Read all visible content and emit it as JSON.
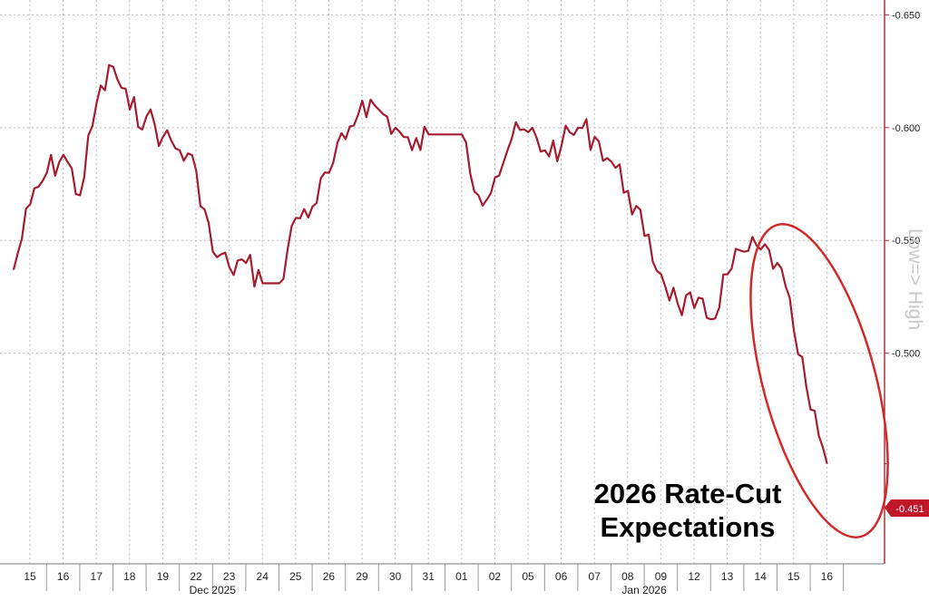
{
  "chart_data": {
    "type": "line",
    "title": "",
    "annotation_lines": [
      "2026 Rate-Cut",
      "Expectations"
    ],
    "ylabel": "Low=> High",
    "yaxis_position": "right",
    "y_inverted": true,
    "ylim": [
      -0.655,
      -0.405
    ],
    "yticks": [
      -0.65,
      -0.6,
      -0.55,
      -0.5
    ],
    "ytick_labels": [
      "-0.650",
      "-0.600",
      "-0.550",
      "-0.500"
    ],
    "last_value": -0.451,
    "last_value_label": "-0.451",
    "grid": true,
    "x_ticks": [
      "15",
      "16",
      "17",
      "18",
      "19",
      "22",
      "23",
      "24",
      "25",
      "26",
      "29",
      "30",
      "31",
      "01",
      "02",
      "05",
      "06",
      "07",
      "08",
      "09",
      "12",
      "13",
      "14",
      "15",
      "16"
    ],
    "month_labels": [
      {
        "label": "Dec 2025",
        "after_tick": "22"
      },
      {
        "label": "Jan 2026",
        "after_tick": "08"
      }
    ],
    "colors": {
      "line": "#a51c30",
      "ellipse": "#d12a2a",
      "axis": "#b0303a",
      "ylabel": "#c8c8c8",
      "badge": "#c0182a"
    },
    "series": [
      {
        "values": [
          {
            "x": "15",
            "y": -0.537
          },
          {
            "x": "15.5",
            "y": -0.566
          },
          {
            "x": "16",
            "y": -0.58
          },
          {
            "x": "16.5",
            "y": -0.588
          },
          {
            "x": "17",
            "y": -0.57
          },
          {
            "x": "17.5",
            "y": -0.611
          },
          {
            "x": "18",
            "y": -0.627
          },
          {
            "x": "18.5",
            "y": -0.608
          },
          {
            "x": "19",
            "y": -0.605
          },
          {
            "x": "19.5",
            "y": -0.596
          },
          {
            "x": "22",
            "y": -0.59
          },
          {
            "x": "22.5",
            "y": -0.581
          },
          {
            "x": "23",
            "y": -0.545
          },
          {
            "x": "23.5",
            "y": -0.538
          },
          {
            "x": "24",
            "y": -0.54
          },
          {
            "x": "24.5",
            "y": -0.531
          },
          {
            "x": "25",
            "y": -0.531
          },
          {
            "x": "25.5",
            "y": -0.56
          },
          {
            "x": "26",
            "y": -0.565
          },
          {
            "x": "26.5",
            "y": -0.58
          },
          {
            "x": "29",
            "y": -0.595
          },
          {
            "x": "29.5",
            "y": -0.612
          },
          {
            "x": "30",
            "y": -0.608
          },
          {
            "x": "30.5",
            "y": -0.6
          },
          {
            "x": "31",
            "y": -0.59
          },
          {
            "x": "31.5",
            "y": -0.597
          },
          {
            "x": "01",
            "y": -0.597
          },
          {
            "x": "01.5",
            "y": -0.597
          },
          {
            "x": "02",
            "y": -0.57
          },
          {
            "x": "02.5",
            "y": -0.578
          },
          {
            "x": "05",
            "y": -0.595
          },
          {
            "x": "05.5",
            "y": -0.598
          },
          {
            "x": "06",
            "y": -0.59
          },
          {
            "x": "06.5",
            "y": -0.592
          },
          {
            "x": "07",
            "y": -0.6
          },
          {
            "x": "07.5",
            "y": -0.596
          },
          {
            "x": "08",
            "y": -0.585
          },
          {
            "x": "08.5",
            "y": -0.572
          },
          {
            "x": "09",
            "y": -0.552
          },
          {
            "x": "09.5",
            "y": -0.535
          },
          {
            "x": "12",
            "y": -0.522
          },
          {
            "x": "12.5",
            "y": -0.52
          },
          {
            "x": "13",
            "y": -0.515
          },
          {
            "x": "13.5",
            "y": -0.535
          },
          {
            "x": "14",
            "y": -0.545
          },
          {
            "x": "14.5",
            "y": -0.546
          },
          {
            "x": "15",
            "y": -0.54
          },
          {
            "x": "15.5",
            "y": -0.51
          },
          {
            "x": "16",
            "y": -0.475
          },
          {
            "x": "16.5",
            "y": -0.451
          }
        ]
      }
    ]
  }
}
